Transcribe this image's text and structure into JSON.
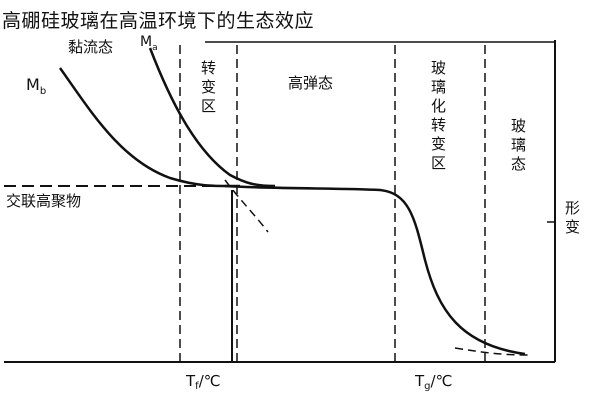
{
  "title": "高硼硅玻璃在高温环境下的生态效应",
  "labels": {
    "crosslinked": "交联高聚物",
    "viscous": "黏流态",
    "transition": "转变区",
    "high_elastic": "高弹态",
    "glass_transition": "玻璃化转变区",
    "glassy": "玻璃态",
    "deformation": "形变",
    "mb": "M",
    "mb_sub": "b",
    "ma": "M",
    "ma_sub": "a",
    "tf": "T",
    "tf_sub": "f",
    "tf_unit": "/℃",
    "tg": "T",
    "tg_sub": "g",
    "tg_unit": "/℃"
  }
}
